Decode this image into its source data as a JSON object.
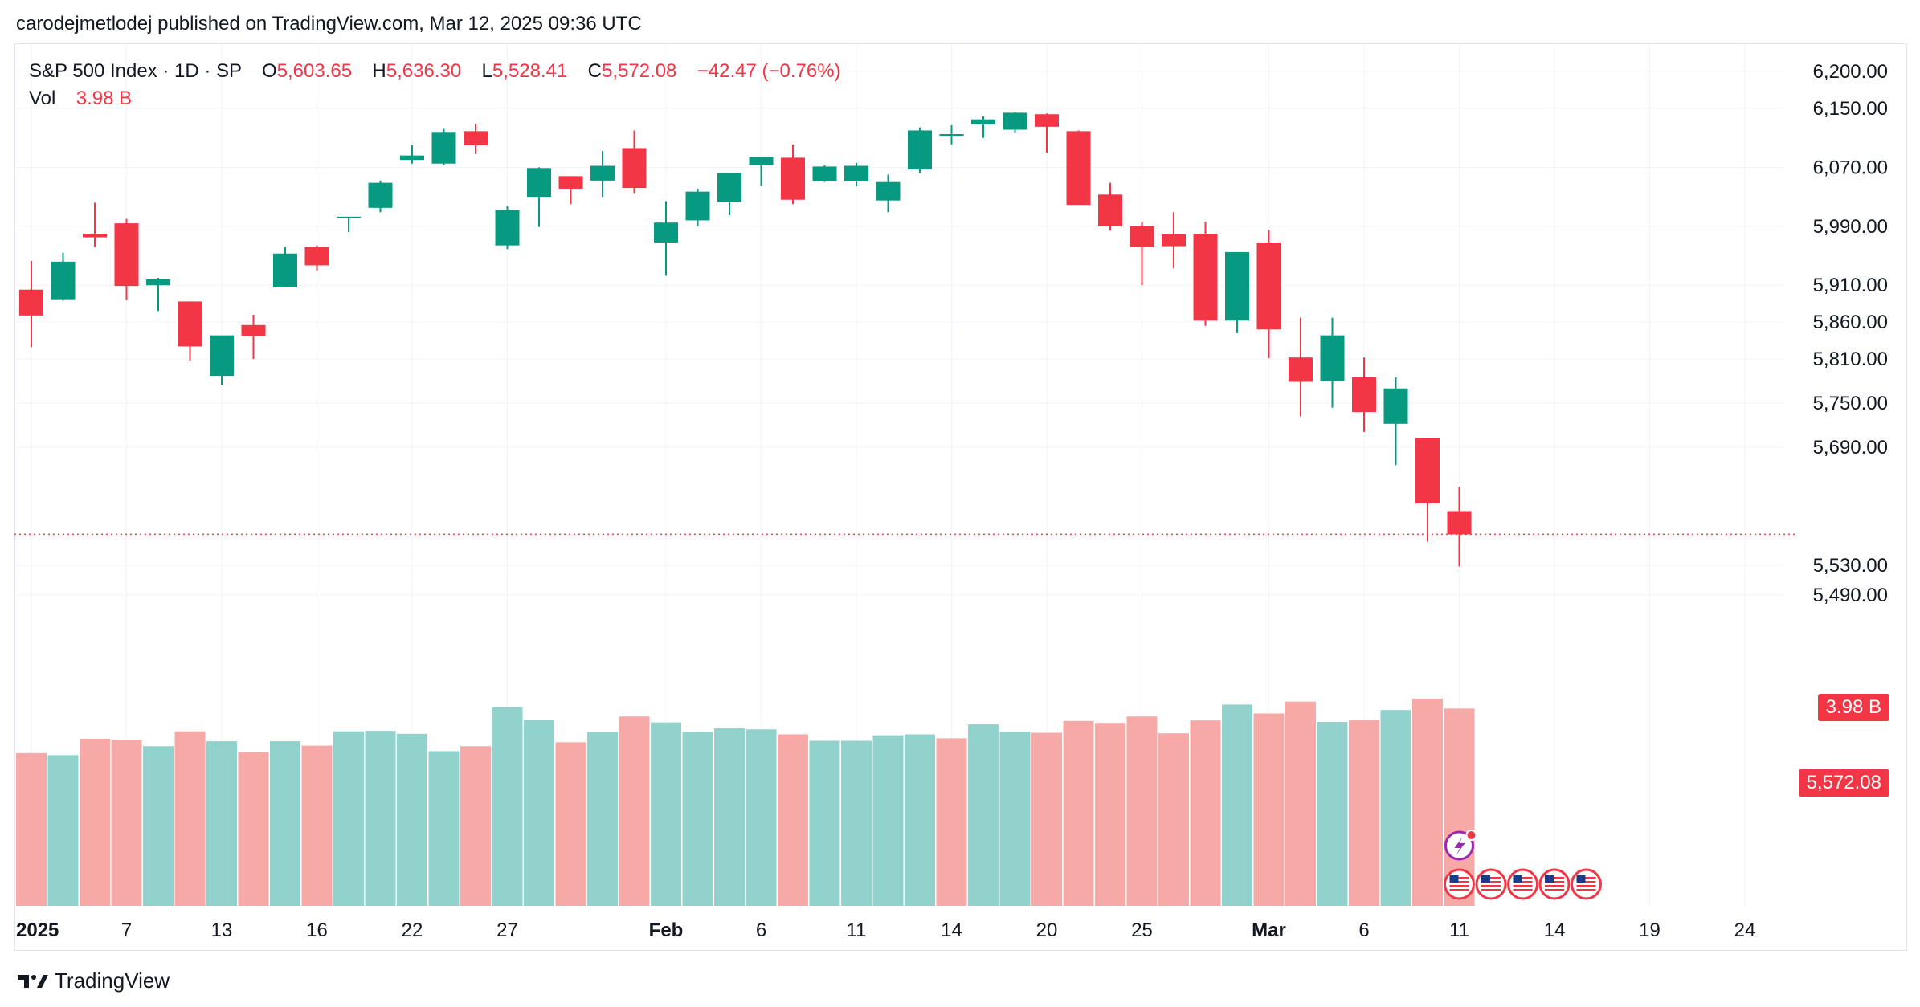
{
  "publisher_line": "carodejmetlodej published on TradingView.com, Mar 12, 2025 09:36 UTC",
  "legend": {
    "symbol": "S&P 500 Index · 1D · SP",
    "o_label": "O",
    "o_value": "5,603.65",
    "h_label": "H",
    "h_value": "5,636.30",
    "l_label": "L",
    "l_value": "5,528.41",
    "c_label": "C",
    "c_value": "5,572.08",
    "change": "−42.47 (−0.76%)",
    "vol_label": "Vol",
    "vol_value": "3.98 B"
  },
  "price_tags": {
    "volume": "3.98 B",
    "last_price": "5,572.08"
  },
  "brand": {
    "name": "TradingView"
  },
  "colors": {
    "up": "#089981",
    "down": "#f23645",
    "up_volume": "#92d2cc",
    "down_volume": "#f7a9a7",
    "grid": "#f0f3fa",
    "axis_text": "#131722"
  },
  "chart_data": {
    "type": "candlestick",
    "symbol": "S&P 500 Index",
    "interval": "1D",
    "y_axis": {
      "ticks": [
        5490,
        5530,
        5572.08,
        5690,
        5750,
        5810,
        5860,
        5910,
        5990,
        6070,
        6150,
        6200
      ],
      "tick_labels": [
        "5,490.00",
        "5,530.00",
        "",
        "5,690.00",
        "5,750.00",
        "5,810.00",
        "5,860.00",
        "5,910.00",
        "5,990.00",
        "6,070.00",
        "6,150.00",
        "6,200.00"
      ]
    },
    "x_axis": {
      "labels": [
        "2025",
        "7",
        "13",
        "16",
        "22",
        "27",
        "Feb",
        "6",
        "11",
        "14",
        "20",
        "25",
        "Mar",
        "6",
        "11",
        "14",
        "19",
        "24"
      ],
      "label_slots": [
        0,
        3,
        6,
        9,
        12,
        15,
        20,
        23,
        26,
        29,
        32,
        35,
        39,
        42,
        45,
        48,
        51,
        54
      ]
    },
    "candles": [
      {
        "o": 5904,
        "h": 5943,
        "l": 5826,
        "c": 5869
      },
      {
        "o": 5891,
        "h": 5954,
        "l": 5889,
        "c": 5942
      },
      {
        "o": 5980,
        "h": 6022,
        "l": 5962,
        "c": 5975
      },
      {
        "o": 5994,
        "h": 6000,
        "l": 5890,
        "c": 5909
      },
      {
        "o": 5910,
        "h": 5920,
        "l": 5875,
        "c": 5918
      },
      {
        "o": 5888,
        "h": 5888,
        "l": 5808,
        "c": 5827
      },
      {
        "o": 5787,
        "h": 5840,
        "l": 5774,
        "c": 5842
      },
      {
        "o": 5856,
        "h": 5870,
        "l": 5810,
        "c": 5841
      },
      {
        "o": 5907,
        "h": 5962,
        "l": 5907,
        "c": 5953
      },
      {
        "o": 5962,
        "h": 5964,
        "l": 5930,
        "c": 5937
      },
      {
        "o": 6003,
        "h": 6003,
        "l": 5982,
        "c": 6003
      },
      {
        "o": 6015,
        "h": 6052,
        "l": 6009,
        "c": 6049
      },
      {
        "o": 6080,
        "h": 6100,
        "l": 6075,
        "c": 6086
      },
      {
        "o": 6075,
        "h": 6122,
        "l": 6073,
        "c": 6118
      },
      {
        "o": 6119,
        "h": 6129,
        "l": 6088,
        "c": 6100
      },
      {
        "o": 5964,
        "h": 6017,
        "l": 5959,
        "c": 6012
      },
      {
        "o": 6030,
        "h": 6070,
        "l": 5989,
        "c": 6069
      },
      {
        "o": 6058,
        "h": 6058,
        "l": 6020,
        "c": 6041
      },
      {
        "o": 6052,
        "h": 6092,
        "l": 6030,
        "c": 6072
      },
      {
        "o": 6096,
        "h": 6120,
        "l": 6035,
        "c": 6042
      },
      {
        "o": 5968,
        "h": 6024,
        "l": 5923,
        "c": 5995
      },
      {
        "o": 5998,
        "h": 6041,
        "l": 5990,
        "c": 6037
      },
      {
        "o": 6023,
        "h": 6060,
        "l": 6005,
        "c": 6062
      },
      {
        "o": 6073,
        "h": 6084,
        "l": 6045,
        "c": 6084
      },
      {
        "o": 6083,
        "h": 6101,
        "l": 6020,
        "c": 6026
      },
      {
        "o": 6051,
        "h": 6073,
        "l": 6050,
        "c": 6071
      },
      {
        "o": 6051,
        "h": 6076,
        "l": 6044,
        "c": 6072
      },
      {
        "o": 6025,
        "h": 6060,
        "l": 6009,
        "c": 6050
      },
      {
        "o": 6067,
        "h": 6124,
        "l": 6062,
        "c": 6120
      },
      {
        "o": 6115,
        "h": 6127,
        "l": 6101,
        "c": 6115
      },
      {
        "o": 6128,
        "h": 6139,
        "l": 6110,
        "c": 6135
      },
      {
        "o": 6121,
        "h": 6145,
        "l": 6117,
        "c": 6144
      },
      {
        "o": 6142,
        "h": 6143,
        "l": 6090,
        "c": 6125
      },
      {
        "o": 6119,
        "h": 6120,
        "l": 6020,
        "c": 6019
      },
      {
        "o": 6033,
        "h": 6049,
        "l": 5984,
        "c": 5990
      },
      {
        "o": 5990,
        "h": 5996,
        "l": 5910,
        "c": 5962
      },
      {
        "o": 5979,
        "h": 6009,
        "l": 5933,
        "c": 5963
      },
      {
        "o": 5980,
        "h": 5996,
        "l": 5855,
        "c": 5862
      },
      {
        "o": 5862,
        "h": 5954,
        "l": 5845,
        "c": 5955
      },
      {
        "o": 5968,
        "h": 5985,
        "l": 5811,
        "c": 5850
      },
      {
        "o": 5812,
        "h": 5866,
        "l": 5732,
        "c": 5779
      },
      {
        "o": 5780,
        "h": 5866,
        "l": 5744,
        "c": 5842
      },
      {
        "o": 5785,
        "h": 5812,
        "l": 5711,
        "c": 5738
      },
      {
        "o": 5722,
        "h": 5785,
        "l": 5666,
        "c": 5770
      },
      {
        "o": 5703,
        "h": 5703,
        "l": 5562,
        "c": 5614
      },
      {
        "o": 5603.65,
        "h": 5636.3,
        "l": 5528.41,
        "c": 5572.08
      }
    ],
    "volume": {
      "unit": "B",
      "last_value": 3.98,
      "values": [
        3.08,
        3.04,
        3.37,
        3.35,
        3.22,
        3.52,
        3.32,
        3.1,
        3.32,
        3.23,
        3.52,
        3.53,
        3.47,
        3.12,
        3.22,
        4.01,
        3.75,
        3.3,
        3.5,
        3.82,
        3.7,
        3.51,
        3.58,
        3.56,
        3.46,
        3.33,
        3.33,
        3.44,
        3.46,
        3.38,
        3.66,
        3.51,
        3.49,
        3.73,
        3.69,
        3.82,
        3.48,
        3.74,
        4.06,
        3.88,
        4.12,
        3.71,
        3.75,
        3.95,
        4.18,
        3.98
      ],
      "up": [
        false,
        true,
        false,
        false,
        true,
        false,
        true,
        false,
        true,
        false,
        true,
        true,
        true,
        true,
        false,
        true,
        true,
        false,
        true,
        false,
        true,
        true,
        true,
        true,
        false,
        true,
        true,
        true,
        true,
        false,
        true,
        true,
        false,
        false,
        false,
        false,
        false,
        false,
        true,
        false,
        false,
        true,
        false,
        true,
        false,
        false
      ]
    },
    "event_markers": {
      "split_icon_slot": 45,
      "flag_slots": [
        45,
        46,
        47,
        48,
        49
      ]
    }
  }
}
